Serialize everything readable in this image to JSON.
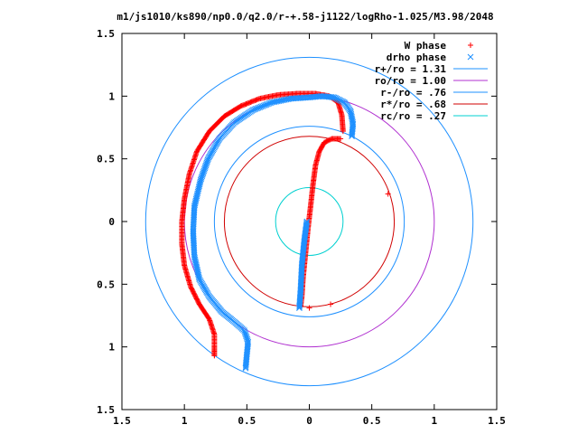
{
  "chart_data": {
    "type": "scatter",
    "title": "m1/js1010/ks890/np0.0/q2.0/r-+.58-j1122/logRho-1.025/M3.98/2048",
    "xlim": [
      -1.5,
      1.5
    ],
    "ylim": [
      -1.5,
      1.5
    ],
    "x_ticks": [
      "1.5",
      "1",
      "0.5",
      "0",
      "0.5",
      "1",
      "1.5"
    ],
    "y_ticks": [
      "1.5",
      "1",
      "0.5",
      "0",
      "0.5",
      "1",
      "1.5"
    ],
    "grid": false,
    "legend_position": "top-right",
    "circles": [
      {
        "name": "r+/ro = 1.31",
        "radius": 1.31,
        "color": "#1e90ff"
      },
      {
        "name": "ro/ro = 1.00",
        "radius": 1.0,
        "color": "#b030d0"
      },
      {
        "name": "r-/ro = .76",
        "radius": 0.76,
        "color": "#1e90ff"
      },
      {
        "name": "r*/ro = .68",
        "radius": 0.68,
        "color": "#d00000"
      },
      {
        "name": "rc/ro = .27",
        "radius": 0.27,
        "color": "#00d0d0"
      }
    ],
    "series": [
      {
        "name": "W phase",
        "marker": "+",
        "color": "#ff0000",
        "points": [
          [
            -0.07,
            -0.68
          ],
          [
            -0.06,
            -0.6
          ],
          [
            -0.05,
            -0.45
          ],
          [
            -0.03,
            -0.25
          ],
          [
            -0.01,
            -0.05
          ],
          [
            0.01,
            0.12
          ],
          [
            0.03,
            0.3
          ],
          [
            0.05,
            0.45
          ],
          [
            0.08,
            0.56
          ],
          [
            0.12,
            0.63
          ],
          [
            0.18,
            0.66
          ],
          [
            0.25,
            0.66
          ],
          [
            0.27,
            0.72
          ],
          [
            0.26,
            0.85
          ],
          [
            0.23,
            0.95
          ],
          [
            0.16,
            1.0
          ],
          [
            0.05,
            1.02
          ],
          [
            -0.1,
            1.02
          ],
          [
            -0.25,
            1.01
          ],
          [
            -0.4,
            0.98
          ],
          [
            -0.55,
            0.92
          ],
          [
            -0.68,
            0.84
          ],
          [
            -0.8,
            0.72
          ],
          [
            -0.9,
            0.56
          ],
          [
            -0.96,
            0.38
          ],
          [
            -1.0,
            0.18
          ],
          [
            -1.02,
            0.0
          ],
          [
            -1.02,
            -0.18
          ],
          [
            -1.0,
            -0.35
          ],
          [
            -0.95,
            -0.52
          ],
          [
            -0.88,
            -0.66
          ],
          [
            -0.8,
            -0.78
          ],
          [
            -0.76,
            -0.9
          ],
          [
            -0.76,
            -1.0
          ],
          [
            -0.76,
            -1.07
          ]
        ],
        "extra_points": [
          [
            0.63,
            0.22
          ],
          [
            0.0,
            -0.69
          ],
          [
            0.17,
            -0.66
          ]
        ]
      },
      {
        "name": "drho phase",
        "marker": "x",
        "color": "#1e90ff",
        "points": [
          [
            -0.08,
            -0.69
          ],
          [
            -0.07,
            -0.55
          ],
          [
            -0.06,
            -0.35
          ],
          [
            -0.04,
            -0.15
          ],
          [
            -0.02,
            0.0
          ],
          [
            0.34,
            0.68
          ],
          [
            0.35,
            0.78
          ],
          [
            0.33,
            0.88
          ],
          [
            0.28,
            0.95
          ],
          [
            0.2,
            0.99
          ],
          [
            0.1,
            1.0
          ],
          [
            0.0,
            0.99
          ],
          [
            -0.15,
            0.98
          ],
          [
            -0.3,
            0.95
          ],
          [
            -0.45,
            0.89
          ],
          [
            -0.6,
            0.79
          ],
          [
            -0.72,
            0.66
          ],
          [
            -0.81,
            0.5
          ],
          [
            -0.87,
            0.33
          ],
          [
            -0.92,
            0.12
          ],
          [
            -0.93,
            -0.08
          ],
          [
            -0.92,
            -0.28
          ],
          [
            -0.88,
            -0.46
          ],
          [
            -0.8,
            -0.6
          ],
          [
            -0.7,
            -0.72
          ],
          [
            -0.6,
            -0.8
          ],
          [
            -0.52,
            -0.87
          ],
          [
            -0.49,
            -0.96
          ],
          [
            -0.5,
            -1.06
          ],
          [
            -0.51,
            -1.17
          ]
        ]
      }
    ]
  }
}
